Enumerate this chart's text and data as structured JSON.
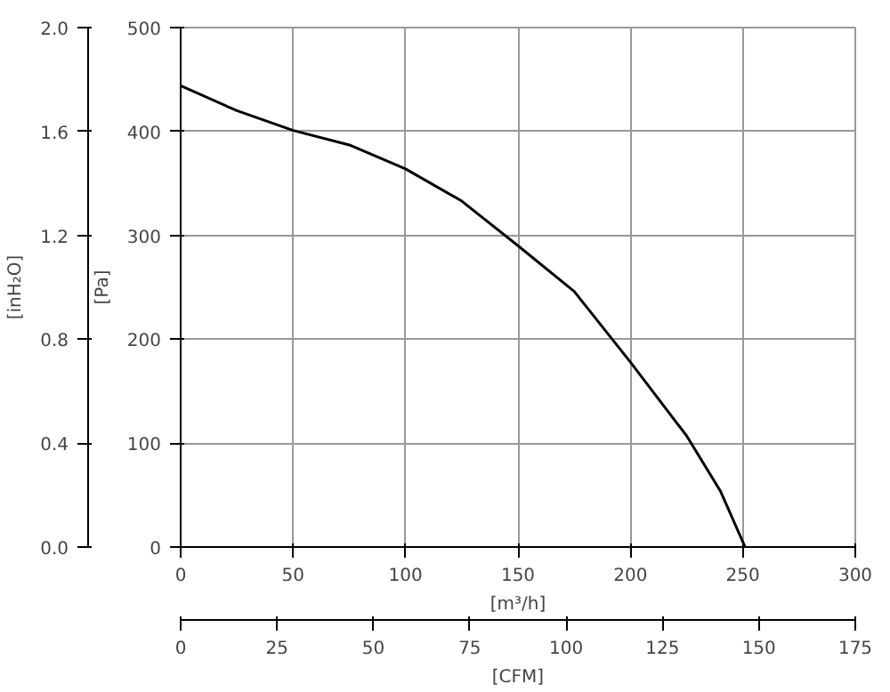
{
  "chart_data": {
    "type": "line",
    "xlabel": "[m³/h]",
    "x2label": "[CFM]",
    "ylabel": "[Pa]",
    "y2label": "[inH₂O]",
    "x": [
      0,
      25,
      50,
      75,
      100,
      125,
      150,
      175,
      200,
      225,
      240,
      251
    ],
    "series": [
      {
        "color": "#000000",
        "values": [
          444,
          420,
          401,
          387,
          364,
          333,
          290,
          246,
          178,
          107,
          54,
          0
        ]
      }
    ],
    "xlim": [
      0,
      300
    ],
    "xticks": [
      0,
      50,
      100,
      150,
      200,
      250,
      300
    ],
    "x2lim": [
      0,
      175
    ],
    "x2ticks": [
      0,
      25,
      50,
      75,
      100,
      125,
      150,
      175
    ],
    "ylim": [
      0,
      500
    ],
    "yticks": [
      0,
      100,
      200,
      300,
      400,
      500
    ],
    "y2lim": [
      0,
      2.0
    ],
    "y2ticks": [
      {
        "value": 0,
        "label": "0.0"
      },
      0.4,
      0.8,
      1.2,
      1.6,
      {
        "value": 2.0,
        "label": "2.0"
      }
    ],
    "grid": true,
    "marker": "none",
    "line_style": "solid"
  }
}
